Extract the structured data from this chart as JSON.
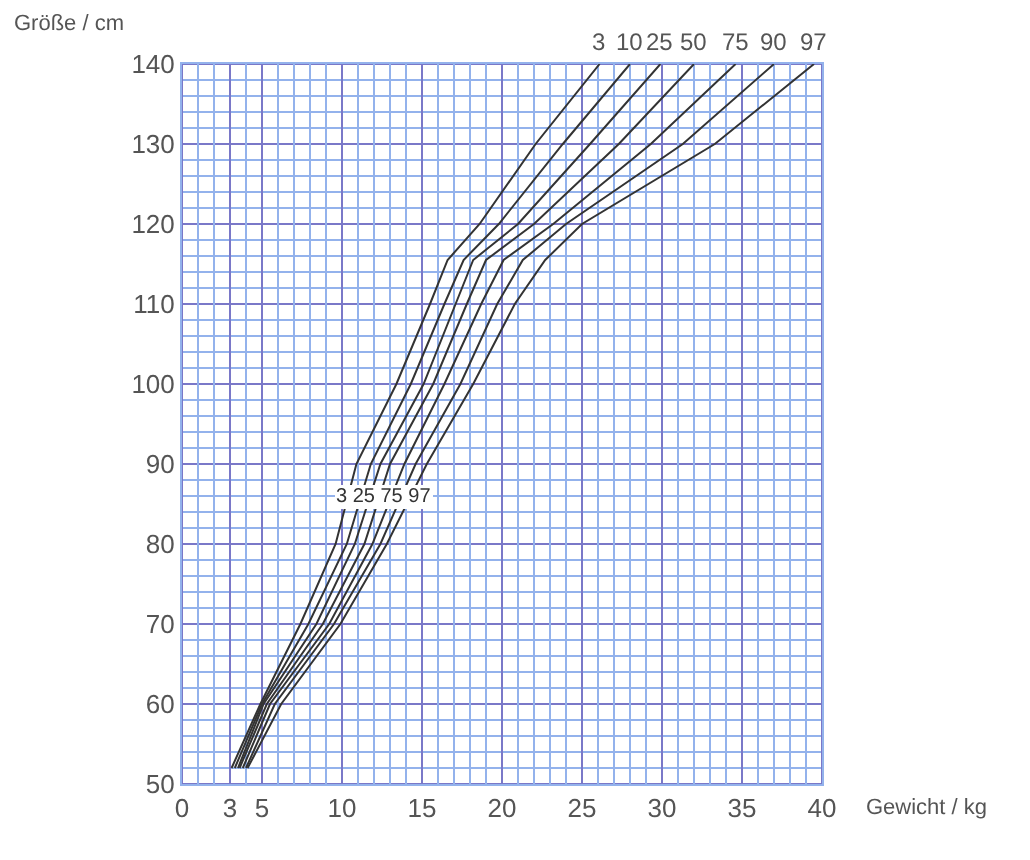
{
  "chart_data": {
    "type": "line",
    "xlabel": "Gewicht / kg",
    "ylabel": "Größe / cm",
    "xlim": [
      0,
      40
    ],
    "ylim": [
      50,
      140
    ],
    "xticks": [
      0,
      {
        "value": 1,
        "label": null
      },
      {
        "value": 2,
        "label": null
      },
      3,
      {
        "value": 4,
        "label": null
      },
      5,
      {
        "value": 6,
        "label": null
      },
      {
        "value": 7,
        "label": null
      },
      {
        "value": 8,
        "label": null
      },
      {
        "value": 9,
        "label": null
      },
      10,
      {
        "value": 11,
        "label": null
      },
      {
        "value": 12,
        "label": null
      },
      {
        "value": 13,
        "label": null
      },
      {
        "value": 14,
        "label": null
      },
      15,
      {
        "value": 16,
        "label": null
      },
      {
        "value": 17,
        "label": null
      },
      {
        "value": 18,
        "label": null
      },
      {
        "value": 19,
        "label": null
      },
      20,
      {
        "value": 21,
        "label": null
      },
      {
        "value": 22,
        "label": null
      },
      {
        "value": 23,
        "label": null
      },
      {
        "value": 24,
        "label": null
      },
      25,
      {
        "value": 26,
        "label": null
      },
      {
        "value": 27,
        "label": null
      },
      {
        "value": 28,
        "label": null
      },
      {
        "value": 29,
        "label": null
      },
      30,
      {
        "value": 31,
        "label": null
      },
      {
        "value": 32,
        "label": null
      },
      {
        "value": 33,
        "label": null
      },
      {
        "value": 34,
        "label": null
      },
      35,
      {
        "value": 36,
        "label": null
      },
      {
        "value": 37,
        "label": null
      },
      {
        "value": 38,
        "label": null
      },
      {
        "value": 39,
        "label": null
      },
      40
    ],
    "yticks": [
      50,
      {
        "value": 52,
        "label": null
      },
      {
        "value": 54,
        "label": null
      },
      {
        "value": 56,
        "label": null
      },
      {
        "value": 58,
        "label": null
      },
      60,
      {
        "value": 62,
        "label": null
      },
      {
        "value": 64,
        "label": null
      },
      {
        "value": 66,
        "label": null
      },
      {
        "value": 68,
        "label": null
      },
      70,
      {
        "value": 72,
        "label": null
      },
      {
        "value": 74,
        "label": null
      },
      {
        "value": 76,
        "label": null
      },
      {
        "value": 78,
        "label": null
      },
      80,
      {
        "value": 82,
        "label": null
      },
      {
        "value": 84,
        "label": null
      },
      {
        "value": 86,
        "label": null
      },
      {
        "value": 88,
        "label": null
      },
      90,
      {
        "value": 92,
        "label": null
      },
      {
        "value": 94,
        "label": null
      },
      {
        "value": 96,
        "label": null
      },
      {
        "value": 98,
        "label": null
      },
      100,
      {
        "value": 102,
        "label": null
      },
      {
        "value": 104,
        "label": null
      },
      {
        "value": 106,
        "label": null
      },
      {
        "value": 108,
        "label": null
      },
      110,
      {
        "value": 112,
        "label": null
      },
      {
        "value": 114,
        "label": null
      },
      {
        "value": 116,
        "label": null
      },
      {
        "value": 118,
        "label": null
      },
      120,
      {
        "value": 122,
        "label": null
      },
      {
        "value": 124,
        "label": null
      },
      {
        "value": 126,
        "label": null
      },
      {
        "value": 128,
        "label": null
      },
      130,
      {
        "value": 132,
        "label": null
      },
      {
        "value": 134,
        "label": null
      },
      {
        "value": 136,
        "label": null
      },
      {
        "value": 138,
        "label": null
      },
      140
    ],
    "grid": true,
    "legend": false,
    "marker": "none",
    "line_style": "solid",
    "series": [
      {
        "name": "3",
        "color": "#333333",
        "x": [
          3.1,
          4.9,
          7.4,
          9.6,
          10.9,
          13.4,
          15.5,
          16.6,
          18.6,
          22.1,
          26.1
        ],
        "values": [
          52,
          60,
          70,
          80,
          90,
          100,
          110,
          115.5,
          120,
          130,
          140
        ]
      },
      {
        "name": "10",
        "color": "#333333",
        "x": [
          3.3,
          5.0,
          7.9,
          10.3,
          11.8,
          14.3,
          16.4,
          17.6,
          19.8,
          23.8,
          28
        ],
        "values": [
          52,
          60,
          70,
          80,
          90,
          100,
          110,
          115.5,
          120,
          130,
          140
        ]
      },
      {
        "name": "25",
        "color": "#333333",
        "x": [
          3.5,
          5.1,
          8.4,
          10.8,
          12.4,
          15.1,
          17.1,
          18.2,
          21,
          25.5,
          29.9
        ],
        "values": [
          52,
          60,
          70,
          80,
          90,
          100,
          110,
          115.5,
          120,
          130,
          140
        ]
      },
      {
        "name": "50",
        "color": "#333333",
        "x": [
          3.6,
          5.3,
          8.8,
          11.4,
          13,
          15.7,
          17.8,
          19,
          22,
          27.3,
          32
        ],
        "values": [
          52,
          60,
          70,
          80,
          90,
          100,
          110,
          115.5,
          120,
          130,
          140
        ]
      },
      {
        "name": "75",
        "color": "#333333",
        "x": [
          3.8,
          5.5,
          9.2,
          11.9,
          13.9,
          16.4,
          18.7,
          20.1,
          23.2,
          29.3,
          34.6
        ],
        "values": [
          52,
          60,
          70,
          80,
          90,
          100,
          110,
          115.5,
          120,
          130,
          140
        ]
      },
      {
        "name": "90",
        "color": "#333333",
        "x": [
          4.0,
          5.8,
          9.5,
          12.4,
          14.6,
          17.4,
          19.7,
          21.3,
          24,
          31.3,
          37
        ],
        "values": [
          52,
          60,
          70,
          80,
          90,
          100,
          110,
          115.5,
          120,
          130,
          140
        ]
      },
      {
        "name": "97",
        "color": "#333333",
        "x": [
          4.1,
          6.2,
          9.9,
          12.8,
          15.3,
          18.2,
          20.8,
          22.7,
          25,
          33.3,
          39.5
        ],
        "values": [
          52,
          60,
          70,
          80,
          90,
          100,
          110,
          115.5,
          120,
          130,
          140
        ]
      }
    ],
    "annotations": [
      {
        "text": "3 25 75 97",
        "x": 12.6,
        "y": 86
      }
    ]
  }
}
